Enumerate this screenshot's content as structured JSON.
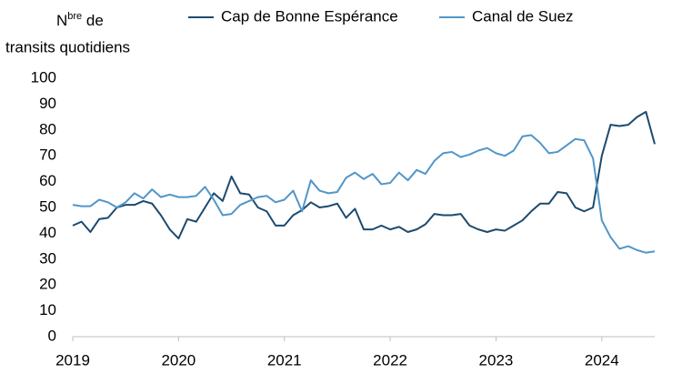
{
  "chart_data": {
    "type": "line",
    "ylabel": [
      "N",
      "bre",
      " de",
      "transits quotidiens"
    ],
    "x": [
      2019,
      2019.083,
      2019.167,
      2019.25,
      2019.333,
      2019.417,
      2019.5,
      2019.583,
      2019.667,
      2019.75,
      2019.833,
      2019.917,
      2020,
      2020.083,
      2020.167,
      2020.25,
      2020.333,
      2020.417,
      2020.5,
      2020.583,
      2020.667,
      2020.75,
      2020.833,
      2020.917,
      2021,
      2021.083,
      2021.167,
      2021.25,
      2021.333,
      2021.417,
      2021.5,
      2021.583,
      2021.667,
      2021.75,
      2021.833,
      2021.917,
      2022,
      2022.083,
      2022.167,
      2022.25,
      2022.333,
      2022.417,
      2022.5,
      2022.583,
      2022.667,
      2022.75,
      2022.833,
      2022.917,
      2023,
      2023.083,
      2023.167,
      2023.25,
      2023.333,
      2023.417,
      2023.5,
      2023.583,
      2023.667,
      2023.75,
      2023.833,
      2023.917,
      2024,
      2024.083,
      2024.167,
      2024.25,
      2024.333,
      2024.417,
      2024.5
    ],
    "series": [
      {
        "name": "Cap de Bonne Espérance",
        "color": "#1c4a6e",
        "values": [
          43,
          44.5,
          40.5,
          45.5,
          46,
          50,
          51,
          51,
          52.5,
          51.5,
          47,
          41.5,
          38,
          45.5,
          44.5,
          50,
          55.5,
          52.5,
          62,
          55.5,
          55,
          50,
          48.5,
          43,
          43,
          47,
          49,
          52,
          50,
          50.5,
          51.5,
          46,
          49.5,
          41.5,
          41.5,
          43,
          41.5,
          42.5,
          40.5,
          41.5,
          43.5,
          47.5,
          47,
          47,
          47.5,
          43,
          41.5,
          40.5,
          41.5,
          41,
          43,
          45,
          48.5,
          51.5,
          51.5,
          56,
          55.5,
          50,
          48.5,
          50,
          70,
          82,
          81.5,
          82,
          85,
          87,
          74.5
        ]
      },
      {
        "name": "Canal de Suez",
        "color": "#5196c8",
        "values": [
          51,
          50.5,
          50.5,
          53,
          52,
          50,
          52,
          55.5,
          53.5,
          57,
          54,
          55,
          54,
          54,
          54.5,
          58,
          53,
          47,
          47.5,
          51,
          52.5,
          54,
          54.5,
          52,
          53,
          56.5,
          48.5,
          60.5,
          56.5,
          55.5,
          56,
          61.5,
          63.5,
          61,
          63,
          59,
          59.5,
          63.5,
          60.5,
          64.5,
          63,
          68,
          71,
          71.5,
          69.5,
          70.5,
          72,
          73,
          71,
          70,
          72,
          77.5,
          78,
          75,
          71,
          71.5,
          74,
          76.5,
          76,
          69,
          45,
          38.5,
          34,
          35,
          33.5,
          32.5,
          33
        ]
      }
    ],
    "xlim": [
      2019,
      2024.5
    ],
    "xticks": [
      2019,
      2020,
      2021,
      2022,
      2023,
      2024
    ],
    "ylim": [
      0,
      100
    ],
    "yticks": [
      0,
      10,
      20,
      30,
      40,
      50,
      60,
      70,
      80,
      90,
      100
    ]
  }
}
